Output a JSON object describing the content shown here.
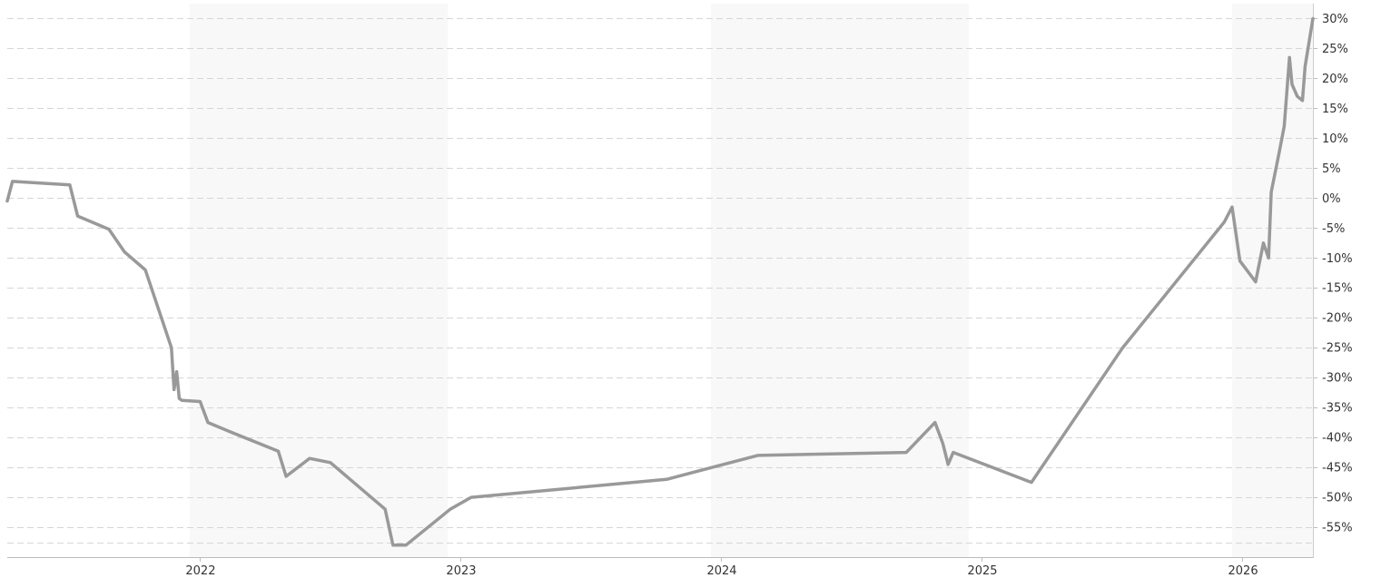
{
  "chart_data": {
    "type": "line",
    "title": "",
    "xlabel": "",
    "ylabel": "",
    "x_axis": {
      "tick_labels": [
        "2022",
        "2023",
        "2024",
        "2025",
        "2026"
      ],
      "tick_values": [
        2022.0,
        2023.0,
        2024.0,
        2025.0,
        2026.0
      ],
      "range": [
        2021.26,
        2026.27
      ],
      "shaded_year_bands": [
        [
          2021.96,
          2022.95
        ],
        [
          2023.96,
          2024.95
        ],
        [
          2025.96,
          2026.27
        ]
      ]
    },
    "y_axis": {
      "tick_labels": [
        "30%",
        "25%",
        "20%",
        "15%",
        "10%",
        "5%",
        "0%",
        "-5%",
        "-10%",
        "-15%",
        "-20%",
        "-25%",
        "-30%",
        "-35%",
        "-40%",
        "-45%",
        "-50%",
        "-55%"
      ],
      "tick_values": [
        30,
        25,
        20,
        15,
        10,
        5,
        0,
        -5,
        -10,
        -15,
        -20,
        -25,
        -30,
        -35,
        -40,
        -45,
        -50,
        -55
      ],
      "range": [
        -60,
        32.5
      ],
      "position": "right",
      "unit": "%"
    },
    "grid": true,
    "grid_style": "dashed horizontal",
    "series": [
      {
        "color": "#999999",
        "x": [
          2021.26,
          2021.28,
          2021.5,
          2021.53,
          2021.65,
          2021.71,
          2021.79,
          2021.89,
          2021.9,
          2021.91,
          2021.92,
          2021.93,
          2022.0,
          2022.03,
          2022.14,
          2022.3,
          2022.33,
          2022.42,
          2022.5,
          2022.71,
          2022.74,
          2022.79,
          2022.96,
          2023.04,
          2023.79,
          2024.14,
          2024.71,
          2024.82,
          2024.85,
          2024.87,
          2024.89,
          2025.19,
          2025.54,
          2025.93,
          2025.96,
          2025.99,
          2026.05,
          2026.08,
          2026.1,
          2026.11,
          2026.14,
          2026.16,
          2026.18,
          2026.19,
          2026.21,
          2026.23,
          2026.24,
          2026.27
        ],
        "y": [
          -0.5,
          2.8,
          2.2,
          -3.0,
          -5.2,
          -9.0,
          -12.0,
          -25.0,
          -32.0,
          -29.0,
          -33.5,
          -33.8,
          -34.0,
          -37.5,
          -39.5,
          -42.3,
          -46.5,
          -43.5,
          -44.2,
          -52.0,
          -58.0,
          -58.0,
          -52.0,
          -50.0,
          -47.0,
          -43.0,
          -42.5,
          -37.5,
          -41.0,
          -44.5,
          -42.5,
          -47.5,
          -25.0,
          -4.0,
          -1.5,
          -10.5,
          -14.0,
          -7.5,
          -10.0,
          1.0,
          7.5,
          12.0,
          23.5,
          19.0,
          17.0,
          16.3,
          22.0,
          30.0
        ]
      }
    ]
  }
}
